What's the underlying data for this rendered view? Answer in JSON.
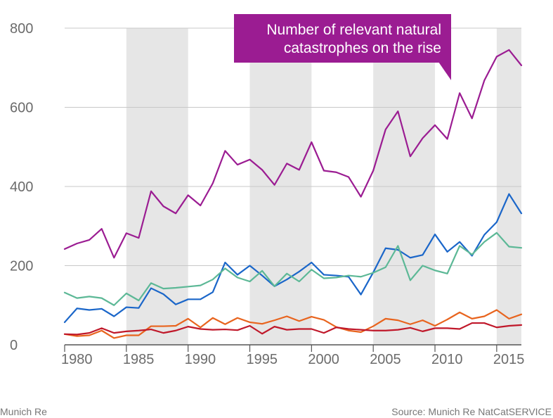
{
  "callout": {
    "line1": "Number of relevant natural",
    "line2": "catastrophes on the rise"
  },
  "footer": {
    "credit": "Munich Re",
    "source": "Source: Munich Re NatCatSERVICE"
  },
  "chart_data": {
    "type": "line",
    "title": "",
    "xlabel": "",
    "ylabel": "",
    "ylim": [
      0,
      800
    ],
    "xlim": [
      1980,
      2017
    ],
    "y_ticks": [
      "0",
      "200",
      "400",
      "600",
      "800"
    ],
    "x_ticks": [
      "1980",
      "1985",
      "1990",
      "1995",
      "2000",
      "2005",
      "2010",
      "2015"
    ],
    "shaded_bands": [
      [
        1985,
        1990
      ],
      [
        1995,
        2000
      ],
      [
        2005,
        2010
      ],
      [
        2015,
        2017
      ]
    ],
    "grid": "horizontal",
    "x": [
      1980,
      1981,
      1982,
      1983,
      1984,
      1985,
      1986,
      1987,
      1988,
      1989,
      1990,
      1991,
      1992,
      1993,
      1994,
      1995,
      1996,
      1997,
      1998,
      1999,
      2000,
      2001,
      2002,
      2003,
      2004,
      2005,
      2006,
      2007,
      2008,
      2009,
      2010,
      2011,
      2012,
      2013,
      2014,
      2015,
      2016,
      2017
    ],
    "series": [
      {
        "color": "#9b1c92",
        "values": [
          242,
          256,
          265,
          293,
          220,
          282,
          270,
          388,
          350,
          332,
          378,
          352,
          408,
          490,
          455,
          468,
          442,
          404,
          458,
          442,
          512,
          440,
          436,
          424,
          374,
          440,
          544,
          590,
          476,
          522,
          555,
          520,
          636,
          572,
          668,
          728,
          745,
          706
        ]
      },
      {
        "color": "#1a66c9",
        "values": [
          57,
          92,
          88,
          91,
          72,
          95,
          93,
          143,
          128,
          102,
          115,
          115,
          133,
          208,
          177,
          200,
          175,
          148,
          165,
          185,
          208,
          177,
          175,
          172,
          127,
          183,
          244,
          240,
          220,
          227,
          279,
          235,
          260,
          225,
          278,
          310,
          381,
          332
        ]
      },
      {
        "color": "#5cb896",
        "values": [
          132,
          118,
          122,
          118,
          100,
          130,
          112,
          156,
          142,
          144,
          147,
          150,
          165,
          193,
          170,
          160,
          187,
          148,
          180,
          160,
          190,
          168,
          170,
          175,
          172,
          182,
          196,
          250,
          163,
          200,
          188,
          180,
          250,
          228,
          260,
          283,
          248,
          245
        ]
      },
      {
        "color": "#e8641e",
        "values": [
          27,
          22,
          24,
          36,
          17,
          24,
          24,
          47,
          47,
          48,
          66,
          44,
          68,
          52,
          68,
          57,
          53,
          62,
          72,
          60,
          71,
          63,
          45,
          36,
          32,
          47,
          66,
          62,
          52,
          62,
          48,
          64,
          82,
          66,
          72,
          88,
          66,
          77
        ]
      },
      {
        "color": "#c0182a",
        "values": [
          27,
          26,
          30,
          42,
          30,
          34,
          36,
          39,
          30,
          36,
          46,
          40,
          38,
          39,
          37,
          48,
          28,
          46,
          38,
          40,
          40,
          30,
          44,
          40,
          38,
          36,
          36,
          38,
          43,
          34,
          42,
          42,
          40,
          55,
          55,
          44,
          48,
          50
        ]
      }
    ]
  }
}
